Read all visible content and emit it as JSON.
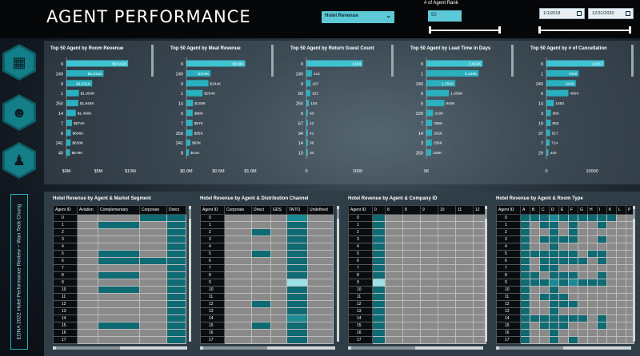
{
  "header": {
    "title": "AGENT PERFORMANCE",
    "measure_selected": "Hotel Revenue",
    "rank_label": "# of Agent Rank",
    "rank_value": "50",
    "date_start": "1/1/2018",
    "date_end": "12/31/2020"
  },
  "sidebar": {
    "icons": [
      "hotel-icon",
      "agent-icon",
      "traveler-icon"
    ],
    "credit": "EDNA 2022 Hotel Performance Review ~ Wan Teck Chung"
  },
  "top_charts": [
    {
      "title": "Top 50 Agent by Room Revenue",
      "labels": [
        "9",
        "240",
        "0",
        "1",
        "250",
        "14",
        "7",
        "6",
        "241",
        "40"
      ],
      "values": [
        9642,
        5818,
        4031,
        1954,
        1848,
        1466,
        874,
        696,
        658,
        578
      ],
      "value_labels": [
        "$9,642K",
        "$5,818K",
        "$4,031K",
        "$1,954K",
        "$1,848K",
        "$1,466K",
        "$874K",
        "$696K",
        "$658K",
        "$578K"
      ],
      "max": 10000,
      "ticks": [
        "$0M",
        "$5M",
        "$10M"
      ]
    },
    {
      "title": "Top 50 Agent by Meal Revenue",
      "labels": [
        "9",
        "240",
        "0",
        "1",
        "14",
        "6",
        "7",
        "250",
        "241",
        "8"
      ],
      "values": [
        919,
        378,
        344,
        254,
        105,
        98,
        97,
        95,
        63,
        41
      ],
      "value_labels": [
        "$919K",
        "$378K",
        "$344K",
        "$254K",
        "$105K",
        "$98K",
        "$97K",
        "$95K",
        "$63K",
        "$41K"
      ],
      "max": 1000,
      "ticks": [
        "$0.0M",
        "$0.5M",
        "$1.0M"
      ]
    },
    {
      "title": "Top 50 Agent by Return Guest Count",
      "labels": [
        "0",
        "240",
        "9",
        "83",
        "250",
        "6",
        "67",
        "94",
        "14",
        "10"
      ],
      "values": [
        2194,
        214,
        167,
        152,
        104,
        60,
        42,
        41,
        36,
        33
      ],
      "value_labels": [
        "2194",
        "214",
        "167",
        "152",
        "104",
        "60",
        "42",
        "41",
        "36",
        "33"
      ],
      "max": 2500,
      "ticks": [
        "0",
        "2000"
      ]
    },
    {
      "title": "Top 50 Agent by Lead Time in Days",
      "labels": [
        "9",
        "1",
        "240",
        "0",
        "6",
        "229",
        "7",
        "14",
        "3",
        "250"
      ],
      "values": [
        2633,
        2446,
        1356,
        1059,
        840,
        310,
        266,
        262,
        256,
        229
      ],
      "value_labels": [
        "2,633K",
        "2,446K",
        "1,356K",
        "1,059K",
        "840K",
        "310K",
        "266K",
        "262K",
        "256K",
        "229K"
      ],
      "max": 3000,
      "ticks": [
        "0K",
        "2,000K"
      ]
    },
    {
      "title": "Top 50 Agent by # of Cancellation",
      "labels": [
        "9",
        "1",
        "240",
        "6",
        "14",
        "3",
        "19",
        "37",
        "7",
        "29"
      ],
      "values": [
        12657,
        7069,
        6436,
        4804,
        1650,
        985,
        950,
        817,
        714,
        440
      ],
      "value_labels": [
        "12657",
        "7069",
        "6436",
        "4804",
        "1650",
        "985",
        "950",
        "817",
        "714",
        "440"
      ],
      "max": 14000,
      "ticks": [
        "0",
        "10000"
      ]
    }
  ],
  "matrices": [
    {
      "title": "Hotel Revenue by Agent & Market Segment",
      "columns": [
        "Agent ID",
        "Aviation",
        "Complementary",
        "Corporate",
        "Direct"
      ],
      "col_widths": [
        30,
        26,
        52,
        34,
        24
      ],
      "rows": [
        "0",
        "1",
        "2",
        "3",
        "4",
        "5",
        "6",
        "7",
        "8",
        "9",
        "10",
        "11",
        "12",
        "13",
        "14",
        "15",
        "16",
        "17"
      ],
      "cells": [
        [
          0,
          0,
          1,
          1
        ],
        [
          0,
          1,
          0,
          1
        ],
        [
          0,
          0,
          0,
          1
        ],
        [
          0,
          0,
          0,
          1
        ],
        [
          0,
          0,
          0,
          1
        ],
        [
          0,
          1,
          0,
          1
        ],
        [
          0,
          1,
          1,
          1
        ],
        [
          0,
          0,
          0,
          1
        ],
        [
          0,
          1,
          0,
          1
        ],
        [
          0,
          0,
          0,
          1
        ],
        [
          0,
          1,
          0,
          1
        ],
        [
          0,
          0,
          0,
          1
        ],
        [
          0,
          0,
          0,
          1
        ],
        [
          0,
          0,
          0,
          1
        ],
        [
          0,
          0,
          0,
          1
        ],
        [
          0,
          1,
          0,
          1
        ],
        [
          0,
          0,
          0,
          1
        ],
        [
          0,
          0,
          0,
          1
        ]
      ]
    },
    {
      "title": "Hotel Revenue by Agent & Distribution Channel",
      "columns": [
        "Agent ID",
        "Corporate",
        "Direct",
        "GDS",
        "TA/TO",
        "Undefined"
      ],
      "col_widths": [
        30,
        34,
        24,
        20,
        26,
        32
      ],
      "rows": [
        "0",
        "1",
        "2",
        "3",
        "4",
        "5",
        "6",
        "7",
        "8",
        "9",
        "10",
        "11",
        "12",
        "13",
        "14",
        "15",
        "16",
        "17"
      ],
      "cells": [
        [
          0,
          0,
          0,
          2,
          0
        ],
        [
          0,
          0,
          0,
          1,
          0
        ],
        [
          0,
          1,
          0,
          1,
          0
        ],
        [
          0,
          0,
          0,
          1,
          0
        ],
        [
          0,
          0,
          0,
          1,
          0
        ],
        [
          0,
          1,
          0,
          1,
          0
        ],
        [
          0,
          0,
          0,
          1,
          0
        ],
        [
          0,
          0,
          0,
          1,
          0
        ],
        [
          0,
          0,
          0,
          1,
          0
        ],
        [
          0,
          0,
          0,
          3,
          0
        ],
        [
          0,
          0,
          0,
          1,
          0
        ],
        [
          0,
          0,
          0,
          1,
          0
        ],
        [
          0,
          1,
          0,
          1,
          0
        ],
        [
          0,
          0,
          0,
          1,
          0
        ],
        [
          0,
          0,
          0,
          2,
          0
        ],
        [
          0,
          1,
          0,
          1,
          0
        ],
        [
          0,
          0,
          0,
          1,
          0
        ],
        [
          0,
          0,
          0,
          1,
          0
        ]
      ]
    },
    {
      "title": "Hotel Revenue by Agent & Company ID",
      "columns": [
        "Agent ID",
        "0",
        "8",
        "8",
        "9",
        "10",
        "11",
        "12"
      ],
      "col_widths": [
        30,
        16,
        22,
        22,
        22,
        22,
        22,
        16
      ],
      "rows": [
        "0",
        "1",
        "2",
        "3",
        "4",
        "5",
        "6",
        "7",
        "8",
        "9",
        "10",
        "11",
        "12",
        "13",
        "14",
        "15",
        "16",
        "17"
      ],
      "cells": [
        [
          1,
          0,
          0,
          0,
          0,
          0,
          0
        ],
        [
          1,
          0,
          0,
          0,
          0,
          0,
          0
        ],
        [
          1,
          0,
          0,
          0,
          0,
          0,
          0
        ],
        [
          1,
          0,
          0,
          0,
          0,
          0,
          0
        ],
        [
          1,
          0,
          0,
          0,
          0,
          0,
          0
        ],
        [
          1,
          0,
          0,
          0,
          0,
          0,
          0
        ],
        [
          1,
          0,
          0,
          0,
          0,
          0,
          0
        ],
        [
          1,
          0,
          0,
          0,
          0,
          0,
          0
        ],
        [
          1,
          0,
          0,
          0,
          0,
          0,
          0
        ],
        [
          3,
          0,
          0,
          0,
          0,
          0,
          0
        ],
        [
          1,
          0,
          0,
          0,
          0,
          0,
          0
        ],
        [
          1,
          0,
          0,
          0,
          0,
          0,
          0
        ],
        [
          1,
          0,
          0,
          0,
          0,
          0,
          0
        ],
        [
          1,
          0,
          0,
          0,
          0,
          0,
          0
        ],
        [
          1,
          0,
          0,
          0,
          0,
          0,
          0
        ],
        [
          1,
          0,
          0,
          0,
          0,
          0,
          0
        ],
        [
          1,
          0,
          0,
          0,
          0,
          0,
          0
        ],
        [
          1,
          0,
          0,
          0,
          0,
          0,
          0
        ]
      ]
    },
    {
      "title": "Hotel Revenue by Agent & Room Type",
      "columns": [
        "Agent ID",
        "A",
        "B",
        "C",
        "D",
        "E",
        "F",
        "G",
        "H",
        "I",
        "K",
        "L",
        "P"
      ],
      "col_widths": [
        30,
        12,
        12,
        12,
        12,
        12,
        12,
        12,
        12,
        12,
        12,
        12,
        10
      ],
      "rows": [
        "0",
        "1",
        "2",
        "3",
        "4",
        "5",
        "6",
        "7",
        "8",
        "9",
        "10",
        "11",
        "12",
        "13",
        "14",
        "15",
        "16",
        "17"
      ],
      "cells": [
        [
          1,
          1,
          1,
          2,
          1,
          1,
          1,
          1,
          1,
          1,
          0,
          0
        ],
        [
          1,
          0,
          1,
          1,
          0,
          1,
          0,
          0,
          1,
          0,
          0,
          0
        ],
        [
          1,
          0,
          0,
          1,
          0,
          1,
          0,
          0,
          0,
          0,
          0,
          0
        ],
        [
          1,
          0,
          1,
          1,
          1,
          1,
          0,
          0,
          1,
          0,
          0,
          0
        ],
        [
          1,
          0,
          0,
          1,
          0,
          0,
          0,
          0,
          0,
          0,
          0,
          0
        ],
        [
          1,
          1,
          1,
          1,
          1,
          1,
          0,
          1,
          1,
          0,
          0,
          0
        ],
        [
          1,
          0,
          1,
          1,
          1,
          1,
          1,
          0,
          1,
          0,
          0,
          0
        ],
        [
          1,
          0,
          1,
          1,
          0,
          0,
          0,
          0,
          0,
          0,
          0,
          0
        ],
        [
          1,
          1,
          0,
          1,
          1,
          1,
          0,
          0,
          1,
          0,
          0,
          0
        ],
        [
          1,
          1,
          1,
          2,
          1,
          2,
          1,
          1,
          1,
          0,
          0,
          0
        ],
        [
          1,
          0,
          0,
          1,
          0,
          0,
          0,
          0,
          0,
          0,
          0,
          0
        ],
        [
          1,
          0,
          1,
          1,
          1,
          0,
          0,
          0,
          0,
          0,
          0,
          0
        ],
        [
          1,
          0,
          0,
          1,
          1,
          1,
          0,
          0,
          0,
          0,
          0,
          0
        ],
        [
          1,
          0,
          0,
          1,
          0,
          0,
          0,
          0,
          0,
          0,
          0,
          0
        ],
        [
          1,
          1,
          1,
          1,
          1,
          1,
          1,
          0,
          1,
          0,
          0,
          0
        ],
        [
          1,
          0,
          1,
          1,
          1,
          0,
          0,
          0,
          1,
          0,
          0,
          0
        ],
        [
          1,
          0,
          0,
          1,
          0,
          0,
          0,
          0,
          0,
          0,
          0,
          0
        ],
        [
          1,
          0,
          0,
          1,
          0,
          1,
          0,
          0,
          0,
          0,
          0,
          0
        ]
      ]
    }
  ]
}
